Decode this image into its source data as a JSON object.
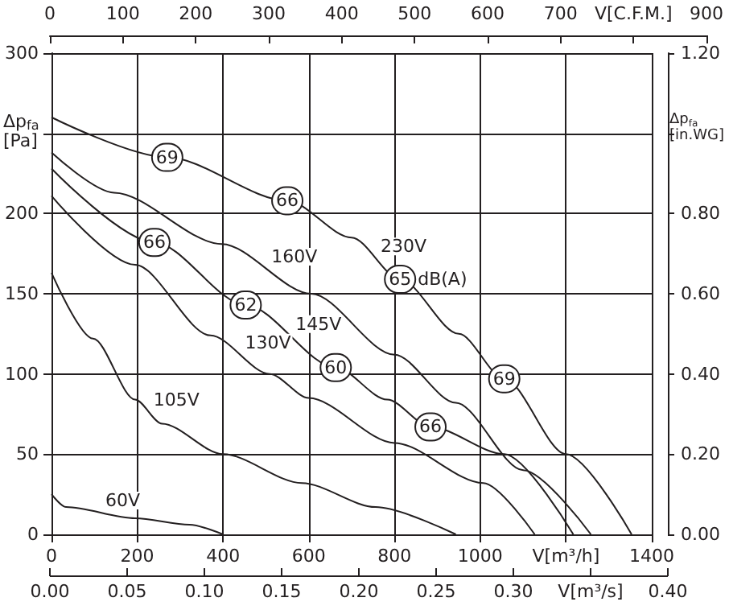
{
  "chart_data": {
    "type": "line",
    "xlabel": "V[m³/h]",
    "ylabel": "Δp$_{fa}$\n[Pa]",
    "y2label": "Δp$_{fa}$\n[in.WG]",
    "x2label": "V[C.F.M.]",
    "xlim": [
      0,
      1400
    ],
    "xticks": [
      0,
      200,
      400,
      600,
      800,
      1000,
      {
        "value": 1200,
        "label": null
      },
      1400
    ],
    "ylim": [
      0,
      300
    ],
    "yticks": [
      0,
      50,
      100,
      150,
      200,
      {
        "value": 250,
        "label": null
      },
      300
    ],
    "y2lim": [
      0,
      1.2
    ],
    "y2ticks": [
      {
        "value": 0,
        "label": "0.00"
      },
      {
        "value": 0.2,
        "label": "0.20"
      },
      {
        "value": 0.4,
        "label": "0.40"
      },
      {
        "value": 0.6,
        "label": "0.60"
      },
      {
        "value": 0.8,
        "label": "0.80"
      },
      {
        "value": 1.0,
        "label": null
      },
      {
        "value": 1.2,
        "label": "1.20"
      }
    ],
    "x2lim": [
      0,
      900
    ],
    "x2ticks": [
      0,
      100,
      200,
      300,
      400,
      500,
      600,
      700,
      {
        "value": 800,
        "label": null
      },
      900
    ],
    "grid": true,
    "line_style": "solid",
    "series": [
      {
        "name": "230V",
        "color": "#231f20",
        "x": [
          0,
          270,
          550,
          700,
          813,
          950,
          1056,
          1200,
          1353
        ],
        "values": [
          260,
          235,
          208,
          185,
          159,
          125,
          97,
          50,
          0
        ]
      },
      {
        "name": "160V",
        "color": "#231f20",
        "x": [
          0,
          146,
          397,
          606,
          800,
          943,
          1100,
          1258
        ],
        "values": [
          238,
          213,
          181,
          150,
          112,
          82,
          40,
          0
        ]
      },
      {
        "name": "145V",
        "color": "#231f20",
        "x": [
          0,
          240,
          453,
          663,
          783,
          884,
          1056,
          1217
        ],
        "values": [
          228,
          182,
          143,
          104,
          84,
          67,
          50,
          0
        ]
      },
      {
        "name": "130V",
        "color": "#231f20",
        "x": [
          0,
          195,
          371,
          509,
          600,
          800,
          1007,
          1127
        ],
        "values": [
          211,
          168,
          124,
          100,
          85,
          57,
          32,
          0
        ]
      },
      {
        "name": "105V",
        "color": "#231f20",
        "x": [
          0,
          97,
          195,
          258,
          400,
          584,
          756,
          943
        ],
        "values": [
          163,
          122,
          84,
          69,
          50,
          32,
          17,
          0
        ]
      },
      {
        "name": "60V",
        "color": "#231f20",
        "x": [
          0,
          34,
          195,
          322,
          400
        ],
        "values": [
          25,
          17,
          10,
          6,
          0
        ]
      }
    ],
    "annotations": [
      "0.00",
      "0.05",
      "0.10",
      "0.15",
      "0.20",
      "0.25",
      "0.30",
      "V[m³/s]",
      "0.40",
      {
        "text": "69",
        "x": 270,
        "y": 235
      },
      {
        "text": "66",
        "x": 550,
        "y": 208
      },
      {
        "text": "65",
        "x": 813,
        "y": 159
      },
      "dB(A)",
      {
        "text": "69",
        "x": 1056,
        "y": 97
      },
      {
        "text": "66",
        "x": 240,
        "y": 182
      },
      {
        "text": "62",
        "x": 453,
        "y": 143
      },
      {
        "text": "60",
        "x": 663,
        "y": 104
      },
      {
        "text": "66",
        "x": 884,
        "y": 67
      }
    ]
  }
}
